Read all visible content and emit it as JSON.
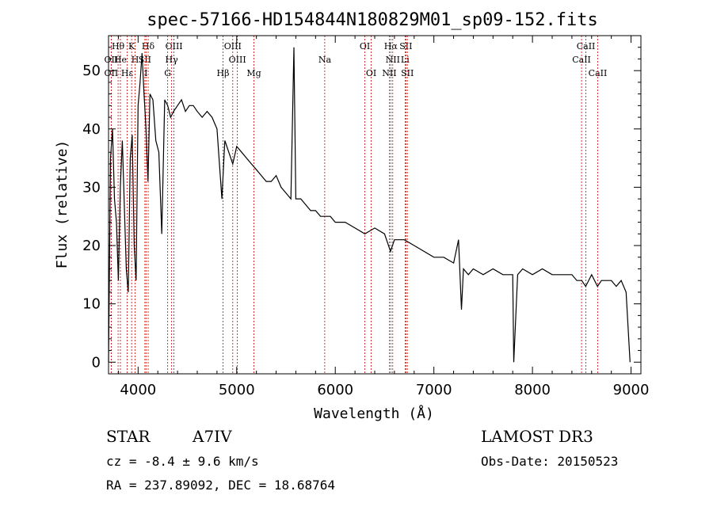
{
  "chart_data": {
    "type": "line",
    "title": "spec-57166-HD154844N180829M01_sp09-152.fits",
    "xlabel": "Wavelength (Å)",
    "ylabel": "Flux (relative)",
    "xlim": [
      3700,
      9100
    ],
    "ylim": [
      -2,
      56
    ],
    "xticks": [
      4000,
      5000,
      6000,
      7000,
      8000,
      9000
    ],
    "yticks": [
      0,
      10,
      20,
      30,
      40,
      50
    ],
    "series": [
      {
        "name": "spectrum",
        "x": [
          3700,
          3720,
          3740,
          3760,
          3780,
          3800,
          3820,
          3840,
          3860,
          3880,
          3900,
          3920,
          3940,
          3960,
          3980,
          4000,
          4020,
          4040,
          4060,
          4080,
          4100,
          4120,
          4150,
          4180,
          4210,
          4240,
          4270,
          4300,
          4330,
          4360,
          4400,
          4440,
          4480,
          4520,
          4560,
          4600,
          4650,
          4700,
          4750,
          4800,
          4850,
          4880,
          4920,
          4960,
          5000,
          5050,
          5100,
          5150,
          5200,
          5250,
          5300,
          5350,
          5400,
          5450,
          5500,
          5550,
          5580,
          5600,
          5650,
          5700,
          5750,
          5800,
          5850,
          5900,
          5950,
          6000,
          6100,
          6200,
          6300,
          6400,
          6500,
          6560,
          6600,
          6700,
          6800,
          6900,
          7000,
          7100,
          7200,
          7250,
          7280,
          7300,
          7350,
          7400,
          7500,
          7600,
          7700,
          7800,
          7810,
          7850,
          7900,
          8000,
          8100,
          8200,
          8300,
          8400,
          8450,
          8500,
          8540,
          8600,
          8660,
          8700,
          8750,
          8800,
          8850,
          8900,
          8950,
          8990
        ],
        "y": [
          0,
          35,
          40,
          28,
          24,
          14,
          30,
          38,
          27,
          16,
          12,
          35,
          39,
          20,
          14,
          44,
          48,
          53,
          46,
          40,
          31,
          46,
          45,
          38,
          36,
          22,
          45,
          44,
          42,
          43,
          44,
          45,
          43,
          44,
          44,
          43,
          42,
          43,
          42,
          40,
          28,
          38,
          36,
          34,
          37,
          36,
          35,
          34,
          33,
          32,
          31,
          31,
          32,
          30,
          29,
          28,
          54,
          28,
          28,
          27,
          26,
          26,
          25,
          25,
          25,
          24,
          24,
          23,
          22,
          23,
          22,
          19,
          21,
          21,
          20,
          19,
          18,
          18,
          17,
          21,
          9,
          16,
          15,
          16,
          15,
          16,
          15,
          15,
          0,
          15,
          16,
          15,
          16,
          15,
          15,
          15,
          14,
          14,
          13,
          15,
          13,
          14,
          14,
          14,
          13,
          14,
          12,
          0
        ]
      }
    ],
    "lines": [
      {
        "label": "Hθ",
        "wl": 3797,
        "row": 1
      },
      {
        "label": "K",
        "wl": 3934,
        "row": 1
      },
      {
        "label": "Hδ",
        "wl": 4102,
        "row": 1
      },
      {
        "label": "OIII",
        "wl": 4364,
        "row": 1
      },
      {
        "label": "OIII",
        "wl": 4960,
        "row": 1
      },
      {
        "label": "OI",
        "wl": 6300,
        "row": 1
      },
      {
        "label": "Hα",
        "wl": 6563,
        "row": 1
      },
      {
        "label": "SII",
        "wl": 6716,
        "row": 1
      },
      {
        "label": "CaII",
        "wl": 8542,
        "row": 1
      },
      {
        "label": "OII",
        "wl": 3727,
        "row": 2
      },
      {
        "label": "He",
        "wl": 3820,
        "row": 2
      },
      {
        "label": "H",
        "wl": 3970,
        "row": 2
      },
      {
        "label": "SII",
        "wl": 4069,
        "row": 2
      },
      {
        "label": "Hγ",
        "wl": 4340,
        "row": 2
      },
      {
        "label": "OIII",
        "wl": 5007,
        "row": 2
      },
      {
        "label": "Na",
        "wl": 5893,
        "row": 2
      },
      {
        "label": "NII",
        "wl": 6583,
        "row": 2
      },
      {
        "label": "Li",
        "wl": 6708,
        "row": 2
      },
      {
        "label": "CaII",
        "wl": 8498,
        "row": 2
      },
      {
        "label": "OII",
        "wl": 3727,
        "row": 3
      },
      {
        "label": "Hε",
        "wl": 3889,
        "row": 3
      },
      {
        "label": "I",
        "wl": 4080,
        "row": 3
      },
      {
        "label": "G",
        "wl": 4300,
        "row": 3
      },
      {
        "label": "Hβ",
        "wl": 4861,
        "row": 3
      },
      {
        "label": "Mg",
        "wl": 5175,
        "row": 3
      },
      {
        "label": "OI",
        "wl": 6364,
        "row": 3
      },
      {
        "label": "NII",
        "wl": 6548,
        "row": 3
      },
      {
        "label": "SII",
        "wl": 6731,
        "row": 3
      },
      {
        "label": "CaII",
        "wl": 8662,
        "row": 3
      }
    ],
    "line_color": "#cc0000",
    "spectrum_color": "#000000"
  },
  "info": {
    "object_class": "STAR",
    "subclass": "A7IV",
    "survey": "LAMOST DR3",
    "cz": "cz = -8.4 ± 9.6 km/s",
    "obs_date": "Obs-Date: 20150523",
    "coords": "RA = 237.89092, DEC =  18.68764"
  }
}
